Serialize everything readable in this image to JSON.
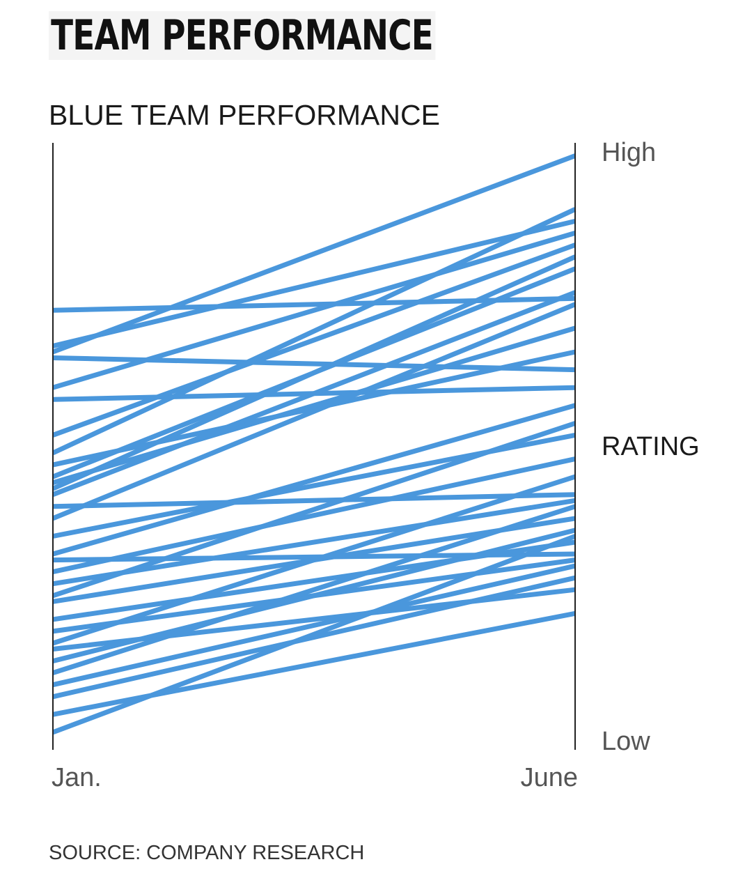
{
  "header": {
    "title": "TEAM PERFORMANCE"
  },
  "footer": {
    "source": "SOURCE: COMPANY RESEARCH"
  },
  "colors": {
    "series": "#4a97dc",
    "axis": "#222222",
    "text": "#1a1a1a",
    "tick_text": "#555555"
  },
  "chart_data": {
    "type": "line",
    "title": "BLUE TEAM PERFORMANCE",
    "x": [
      "Jan.",
      "June"
    ],
    "ylabel": "RATING",
    "y_tick_labels": [
      "High",
      "Low"
    ],
    "ylim": [
      0,
      100
    ],
    "grid": false,
    "legend": "none",
    "series": [
      {
        "values": [
          73,
          75
        ]
      },
      {
        "values": [
          67,
          88
        ]
      },
      {
        "values": [
          66,
          99
        ]
      },
      {
        "values": [
          65,
          63
        ]
      },
      {
        "values": [
          60,
          86
        ]
      },
      {
        "values": [
          58,
          60
        ]
      },
      {
        "values": [
          52,
          84
        ]
      },
      {
        "values": [
          49,
          90
        ]
      },
      {
        "values": [
          47,
          66
        ]
      },
      {
        "values": [
          45,
          80
        ]
      },
      {
        "values": [
          44,
          70
        ]
      },
      {
        "values": [
          43,
          82
        ]
      },
      {
        "values": [
          42,
          76
        ]
      },
      {
        "values": [
          40,
          42
        ]
      },
      {
        "values": [
          38,
          74
        ]
      },
      {
        "values": [
          35,
          52
        ]
      },
      {
        "values": [
          32,
          57
        ]
      },
      {
        "values": [
          31,
          32
        ]
      },
      {
        "values": [
          29,
          48
        ]
      },
      {
        "values": [
          27,
          41
        ]
      },
      {
        "values": [
          25,
          54
        ]
      },
      {
        "values": [
          24,
          38
        ]
      },
      {
        "values": [
          21,
          34
        ]
      },
      {
        "values": [
          19,
          31
        ]
      },
      {
        "values": [
          17,
          45
        ]
      },
      {
        "values": [
          16,
          26
        ]
      },
      {
        "values": [
          14,
          36
        ]
      },
      {
        "values": [
          12,
          40
        ]
      },
      {
        "values": [
          10,
          30
        ]
      },
      {
        "values": [
          8,
          28
        ]
      },
      {
        "values": [
          5,
          22
        ]
      },
      {
        "values": [
          2,
          35
        ]
      }
    ]
  }
}
